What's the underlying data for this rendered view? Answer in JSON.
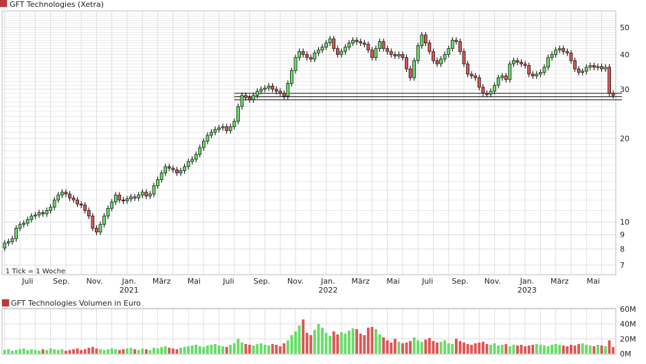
{
  "colors": {
    "up": "#66dd66",
    "down": "#dd5555",
    "wick": "#000000",
    "grid": "#dddddd",
    "frame": "#bbbbbb",
    "legend_swatch": "#cc3333",
    "note": "#777777"
  },
  "chart_data": [
    {
      "type": "candlestick",
      "title": "GFT Technologies (Xetra)",
      "note": "1 Tick = 1 Woche",
      "y_scale": "log",
      "ylim": [
        6.5,
        57
      ],
      "yticks": [
        "7",
        "8",
        "9",
        "10",
        "20",
        "30",
        "40",
        "50"
      ],
      "x_month_labels": [
        "Juli",
        "Sep.",
        "Nov.",
        "Jan.",
        "März",
        "Mai",
        "Juli",
        "Sep.",
        "Nov.",
        "Jan.",
        "März",
        "Mai",
        "Juli",
        "Sep.",
        "Nov.",
        "Jan.",
        "März",
        "Mai"
      ],
      "x_month_week_index": [
        6,
        14.8,
        23.5,
        32.5,
        41,
        49.5,
        58.5,
        67.2,
        76,
        84.5,
        93,
        101.5,
        110.5,
        119,
        127.5,
        136.5,
        145,
        153.8
      ],
      "x_year_labels": [
        {
          "label": "2021",
          "under": "Jan."
        },
        {
          "label": "2022",
          "under": "Jan."
        },
        {
          "label": "2023",
          "under": "Jan."
        }
      ],
      "support_lines": [
        27.5,
        28.2,
        29.0
      ],
      "support_start_week": 60,
      "weekly_close": [
        8.4,
        8.5,
        8.7,
        9.5,
        9.8,
        9.9,
        10.2,
        10.5,
        10.6,
        10.8,
        10.7,
        11.0,
        11.3,
        12.0,
        12.5,
        12.8,
        12.6,
        12.2,
        12.0,
        11.6,
        11.5,
        11.0,
        10.5,
        9.5,
        9.2,
        9.8,
        10.5,
        11.2,
        11.8,
        12.5,
        12.0,
        11.9,
        12.1,
        12.3,
        12.2,
        12.5,
        12.8,
        12.4,
        12.6,
        13.5,
        14.2,
        15.0,
        15.8,
        15.6,
        15.4,
        15.0,
        15.3,
        15.8,
        16.5,
        16.8,
        17.5,
        18.5,
        19.5,
        20.5,
        21.0,
        21.5,
        21.8,
        22.0,
        21.3,
        22.0,
        23.0,
        26.0,
        28.5,
        28.0,
        27.5,
        28.5,
        29.5,
        30.0,
        30.3,
        30.8,
        30.0,
        29.5,
        29.0,
        28.3,
        31.5,
        35.0,
        39.0,
        41.0,
        40.0,
        39.0,
        38.5,
        40.5,
        41.5,
        42.5,
        44.0,
        45.5,
        42.0,
        40.0,
        41.0,
        42.5,
        44.0,
        45.0,
        44.5,
        44.0,
        43.5,
        41.5,
        39.0,
        42.0,
        44.5,
        42.0,
        41.0,
        40.0,
        39.5,
        40.0,
        39.0,
        35.5,
        33.0,
        38.0,
        43.0,
        47.0,
        44.0,
        41.0,
        38.0,
        37.0,
        38.5,
        40.0,
        42.0,
        45.0,
        44.5,
        41.0,
        37.0,
        34.0,
        33.5,
        33.0,
        30.5,
        29.0,
        28.8,
        29.5,
        31.0,
        33.0,
        33.5,
        32.5,
        37.0,
        38.0,
        37.5,
        37.0,
        36.5,
        34.0,
        33.5,
        34.0,
        34.5,
        36.0,
        39.0,
        40.0,
        41.5,
        42.0,
        41.0,
        40.5,
        38.0,
        35.5,
        34.5,
        34.8,
        36.0,
        36.5,
        36.0,
        36.2,
        35.5,
        36.0,
        29.0,
        28.5
      ]
    },
    {
      "type": "bar",
      "title": "GFT Technologies Volumen in Euro",
      "yticks": [
        "0M",
        "20M",
        "40M",
        "60M"
      ],
      "ylim": [
        0,
        60
      ],
      "unit": "M EUR",
      "weekly_volume": [
        5,
        6,
        4,
        5,
        6,
        7,
        5,
        6,
        5,
        4,
        6,
        5,
        7,
        6,
        5,
        6,
        4,
        5,
        6,
        7,
        5,
        6,
        8,
        9,
        7,
        6,
        5,
        6,
        7,
        6,
        5,
        6,
        7,
        8,
        6,
        5,
        7,
        6,
        5,
        8,
        7,
        9,
        10,
        8,
        7,
        6,
        8,
        9,
        10,
        11,
        12,
        10,
        9,
        11,
        12,
        13,
        11,
        10,
        9,
        12,
        14,
        20,
        15,
        13,
        12,
        11,
        13,
        14,
        12,
        11,
        13,
        12,
        10,
        14,
        18,
        25,
        30,
        38,
        46,
        28,
        25,
        32,
        40,
        35,
        28,
        24,
        30,
        26,
        29,
        27,
        31,
        34,
        33,
        27,
        25,
        35,
        36,
        33,
        26,
        22,
        18,
        15,
        20,
        16,
        14,
        15,
        17,
        22,
        18,
        16,
        19,
        21,
        17,
        15,
        16,
        18,
        14,
        13,
        20,
        17,
        15,
        13,
        12,
        14,
        15,
        16,
        13,
        12,
        14,
        11,
        12,
        13,
        10,
        12,
        11,
        12,
        10,
        11,
        12,
        13,
        12,
        11,
        10,
        12,
        13,
        12,
        11,
        10,
        12,
        11,
        13,
        14,
        12,
        11,
        10,
        12,
        11,
        10,
        18,
        9
      ]
    }
  ]
}
